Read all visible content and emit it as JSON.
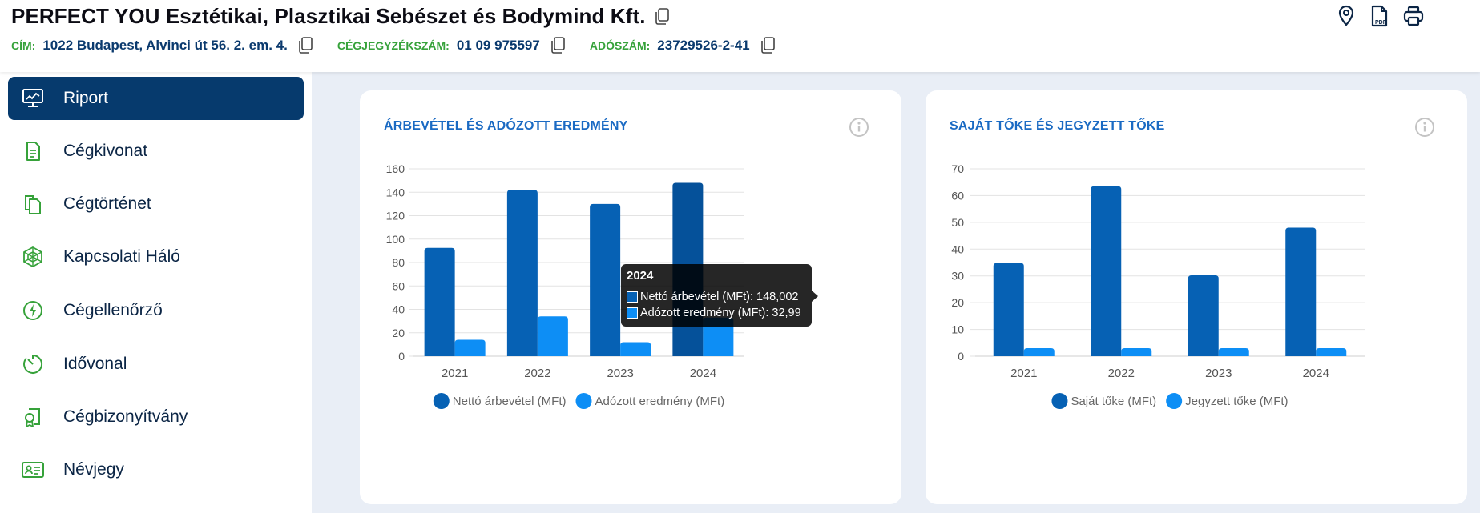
{
  "header": {
    "company_name": "PERFECT YOU Esztétikai, Plasztikai Sebészet és Bodymind Kft.",
    "address_label": "CÍM:",
    "address_value": "1022 Budapest, Alvinci út 56. 2. em. 4.",
    "registry_label": "CÉGJEGYZÉKSZÁM:",
    "registry_value": "01 09 975597",
    "tax_label": "ADÓSZÁM:",
    "tax_value": "23729526-2-41",
    "actions": [
      "map-pin-icon",
      "pdf-icon",
      "printer-icon"
    ]
  },
  "sidebar": {
    "items": [
      {
        "label": "Riport",
        "icon": "monitor-chart-icon",
        "active": true
      },
      {
        "label": "Cégkivonat",
        "icon": "document-icon"
      },
      {
        "label": "Cégtörténet",
        "icon": "files-icon"
      },
      {
        "label": "Kapcsolati Háló",
        "icon": "network-web-icon"
      },
      {
        "label": "Cégellenőrző",
        "icon": "lightning-check-icon"
      },
      {
        "label": "Idővonal",
        "icon": "timer-icon"
      },
      {
        "label": "Cégbizonyítvány",
        "icon": "certificate-icon"
      },
      {
        "label": "Névjegy",
        "icon": "id-card-icon"
      }
    ]
  },
  "colors": {
    "accent_dark": "#063a6d",
    "series_dark": "#0661b4",
    "series_light": "#0d8ef5",
    "label_green": "#36a23a",
    "title_blue": "#1a6ac3"
  },
  "cards": [
    {
      "title": "ÁRBEVÉTEL ÉS ADÓZOTT EREDMÉNY",
      "chart_data": {
        "type": "bar",
        "categories": [
          "2021",
          "2022",
          "2023",
          "2024"
        ],
        "series": [
          {
            "name": "Nettó árbevétel (MFt)",
            "values": [
              92.5,
              142,
              130,
              148.002
            ],
            "color": "#0661b4"
          },
          {
            "name": "Adózott eredmény (MFt)",
            "values": [
              14,
              34,
              12,
              32.99
            ],
            "color": "#0d8ef5"
          }
        ],
        "yticks": [
          "0",
          "20",
          "40",
          "60",
          "80",
          "100",
          "120",
          "140",
          "160"
        ],
        "ylim": [
          0,
          160
        ],
        "grid": true,
        "legend": "bottom",
        "highlight_category": 3
      },
      "tooltip": {
        "title": "2024",
        "rows": [
          {
            "text": "Nettó árbevétel (MFt): 148,002",
            "color": "#0661b4"
          },
          {
            "text": "Adózott eredmény (MFt): 32,99",
            "color": "#0d8ef5"
          }
        ]
      }
    },
    {
      "title": "SAJÁT TŐKE ÉS JEGYZETT TŐKE",
      "chart_data": {
        "type": "bar",
        "categories": [
          "2021",
          "2022",
          "2023",
          "2024"
        ],
        "series": [
          {
            "name": "Saját tőke (MFt)",
            "values": [
              34.8,
              63.5,
              30.2,
              48
            ],
            "color": "#0661b4"
          },
          {
            "name": "Jegyzett tőke (MFt)",
            "values": [
              3,
              3,
              3,
              3
            ],
            "color": "#0d8ef5"
          }
        ],
        "yticks": [
          "0",
          "10",
          "20",
          "30",
          "40",
          "50",
          "60",
          "70"
        ],
        "ylim": [
          0,
          70
        ],
        "grid": true,
        "legend": "bottom"
      }
    }
  ]
}
